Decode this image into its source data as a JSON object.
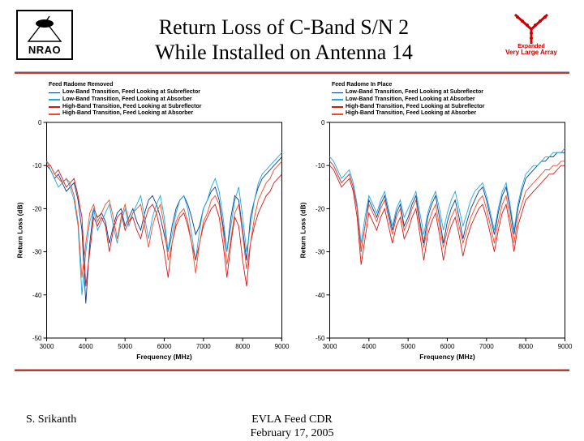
{
  "header": {
    "nrao_label": "NRAO",
    "title_line1": "Return Loss of C-Band S/N 2",
    "title_line2": "While Installed on Antenna 14",
    "evla_line1": "Expanded",
    "evla_line2": "Very Large Array",
    "divider_color_top": "#aaaaaa",
    "divider_color_bottom": "#cc3333"
  },
  "footer": {
    "author": "S. Srikanth",
    "center_line1": "EVLA Feed CDR",
    "center_line2": "February 17, 2005"
  },
  "chart_common": {
    "xlabel": "Frequency (MHz)",
    "ylabel": "Return Loss (dB)",
    "xlim": [
      3000,
      9000
    ],
    "xtick_step": 1000,
    "ylim": [
      -50,
      0
    ],
    "ytick_step": 10,
    "label_fontsize": 8.5,
    "tick_fontsize": 8,
    "background_color": "#ffffff",
    "axis_color": "#000000",
    "line_width": 0.9
  },
  "legend_series": [
    {
      "color": "#0a3a8a",
      "label": "Low-Band Transition, Feed Looking at Subreflector"
    },
    {
      "color": "#1fa9e1",
      "label": "Low-Band Transition, Feed Looking at Absorber"
    },
    {
      "color": "#d11a1a",
      "label": "High-Band Transition, Feed Looking at Subreflector"
    },
    {
      "color": "#f04a2a",
      "label": "High-Band Transition, Feed Looking at Absorber"
    }
  ],
  "left_chart": {
    "legend_title": "Feed Radome Removed",
    "series": [
      {
        "color": "#0a3a8a",
        "x_min": 3000,
        "x_max": 9000,
        "data": [
          -10,
          -11,
          -13,
          -12,
          -14,
          -16,
          -15,
          -14,
          -18,
          -25,
          -42,
          -28,
          -20,
          -22,
          -21,
          -23,
          -28,
          -24,
          -21,
          -20,
          -24,
          -22,
          -20,
          -23,
          -25,
          -21,
          -18,
          -17,
          -19,
          -22,
          -26,
          -30,
          -24,
          -20,
          -18,
          -17,
          -19,
          -22,
          -26,
          -24,
          -20,
          -18,
          -16,
          -15,
          -18,
          -24,
          -30,
          -22,
          -17,
          -18,
          -25,
          -32,
          -22,
          -18,
          -15,
          -13,
          -12,
          -11,
          -10,
          -9,
          -8
        ]
      },
      {
        "color": "#1fa9e1",
        "x_min": 3000,
        "x_max": 9000,
        "data": [
          -9,
          -11,
          -13,
          -15,
          -14,
          -13,
          -15,
          -18,
          -24,
          -40,
          -30,
          -23,
          -20,
          -25,
          -23,
          -21,
          -19,
          -24,
          -28,
          -23,
          -20,
          -24,
          -21,
          -19,
          -17,
          -22,
          -27,
          -22,
          -19,
          -17,
          -22,
          -30,
          -26,
          -21,
          -18,
          -17,
          -20,
          -26,
          -32,
          -25,
          -20,
          -18,
          -15,
          -13,
          -16,
          -22,
          -30,
          -24,
          -18,
          -15,
          -22,
          -30,
          -24,
          -18,
          -14,
          -12,
          -11,
          -10,
          -9,
          -8,
          -7
        ]
      },
      {
        "color": "#d11a1a",
        "x_min": 3000,
        "x_max": 9000,
        "data": [
          -10,
          -10,
          -12,
          -11,
          -13,
          -15,
          -14,
          -13,
          -17,
          -22,
          -38,
          -30,
          -22,
          -24,
          -22,
          -24,
          -30,
          -25,
          -22,
          -21,
          -25,
          -23,
          -22,
          -25,
          -27,
          -23,
          -20,
          -19,
          -21,
          -25,
          -30,
          -36,
          -28,
          -24,
          -22,
          -21,
          -24,
          -28,
          -32,
          -28,
          -24,
          -22,
          -20,
          -19,
          -22,
          -28,
          -36,
          -28,
          -22,
          -24,
          -32,
          -38,
          -28,
          -24,
          -21,
          -19,
          -17,
          -16,
          -14,
          -13,
          -12
        ]
      },
      {
        "color": "#f04a2a",
        "x_min": 3000,
        "x_max": 9000,
        "data": [
          -9,
          -10,
          -12,
          -13,
          -14,
          -13,
          -14,
          -17,
          -23,
          -36,
          -28,
          -21,
          -19,
          -23,
          -21,
          -19,
          -18,
          -22,
          -27,
          -22,
          -19,
          -23,
          -21,
          -20,
          -19,
          -24,
          -29,
          -24,
          -21,
          -19,
          -24,
          -32,
          -28,
          -23,
          -21,
          -20,
          -23,
          -28,
          -35,
          -28,
          -23,
          -21,
          -18,
          -17,
          -19,
          -25,
          -33,
          -27,
          -21,
          -19,
          -26,
          -34,
          -28,
          -22,
          -18,
          -16,
          -14,
          -13,
          -11,
          -10,
          -9
        ]
      }
    ]
  },
  "right_chart": {
    "legend_title": "Feed Radome In Place",
    "series": [
      {
        "color": "#0a3a8a",
        "x_min": 3000,
        "x_max": 9000,
        "data": [
          -9,
          -10,
          -12,
          -14,
          -13,
          -12,
          -15,
          -20,
          -30,
          -24,
          -18,
          -20,
          -22,
          -19,
          -17,
          -21,
          -25,
          -21,
          -19,
          -24,
          -22,
          -19,
          -17,
          -23,
          -28,
          -22,
          -19,
          -17,
          -22,
          -28,
          -23,
          -20,
          -18,
          -22,
          -27,
          -23,
          -20,
          -18,
          -16,
          -15,
          -18,
          -22,
          -26,
          -21,
          -17,
          -15,
          -20,
          -26,
          -20,
          -16,
          -13,
          -12,
          -11,
          -10,
          -9,
          -9,
          -8,
          -8,
          -7,
          -7,
          -7
        ]
      },
      {
        "color": "#1fa9e1",
        "x_min": 3000,
        "x_max": 9000,
        "data": [
          -8,
          -9,
          -11,
          -13,
          -12,
          -11,
          -14,
          -19,
          -28,
          -22,
          -17,
          -19,
          -21,
          -18,
          -16,
          -20,
          -24,
          -20,
          -18,
          -22,
          -20,
          -18,
          -16,
          -21,
          -26,
          -21,
          -18,
          -16,
          -20,
          -25,
          -21,
          -18,
          -16,
          -20,
          -24,
          -21,
          -18,
          -16,
          -15,
          -14,
          -17,
          -21,
          -25,
          -20,
          -16,
          -14,
          -19,
          -25,
          -19,
          -15,
          -12,
          -11,
          -10,
          -10,
          -9,
          -8,
          -8,
          -7,
          -7,
          -7,
          -6
        ]
      },
      {
        "color": "#d11a1a",
        "x_min": 3000,
        "x_max": 9000,
        "data": [
          -10,
          -11,
          -13,
          -15,
          -14,
          -13,
          -16,
          -22,
          -33,
          -27,
          -21,
          -23,
          -25,
          -22,
          -20,
          -24,
          -28,
          -24,
          -22,
          -27,
          -25,
          -22,
          -20,
          -26,
          -32,
          -26,
          -23,
          -21,
          -26,
          -32,
          -27,
          -24,
          -22,
          -26,
          -31,
          -27,
          -24,
          -22,
          -20,
          -19,
          -22,
          -26,
          -30,
          -25,
          -21,
          -19,
          -24,
          -30,
          -24,
          -21,
          -18,
          -17,
          -16,
          -15,
          -14,
          -13,
          -12,
          -12,
          -11,
          -10,
          -10
        ]
      },
      {
        "color": "#f04a2a",
        "x_min": 3000,
        "x_max": 9000,
        "data": [
          -9,
          -10,
          -12,
          -14,
          -13,
          -12,
          -15,
          -20,
          -30,
          -24,
          -19,
          -21,
          -23,
          -20,
          -18,
          -22,
          -26,
          -22,
          -20,
          -25,
          -23,
          -20,
          -18,
          -24,
          -29,
          -24,
          -21,
          -19,
          -24,
          -29,
          -25,
          -22,
          -20,
          -24,
          -28,
          -25,
          -22,
          -20,
          -18,
          -17,
          -20,
          -24,
          -28,
          -23,
          -19,
          -17,
          -22,
          -28,
          -22,
          -19,
          -16,
          -15,
          -14,
          -13,
          -12,
          -11,
          -11,
          -10,
          -10,
          -9,
          -9
        ]
      }
    ]
  }
}
